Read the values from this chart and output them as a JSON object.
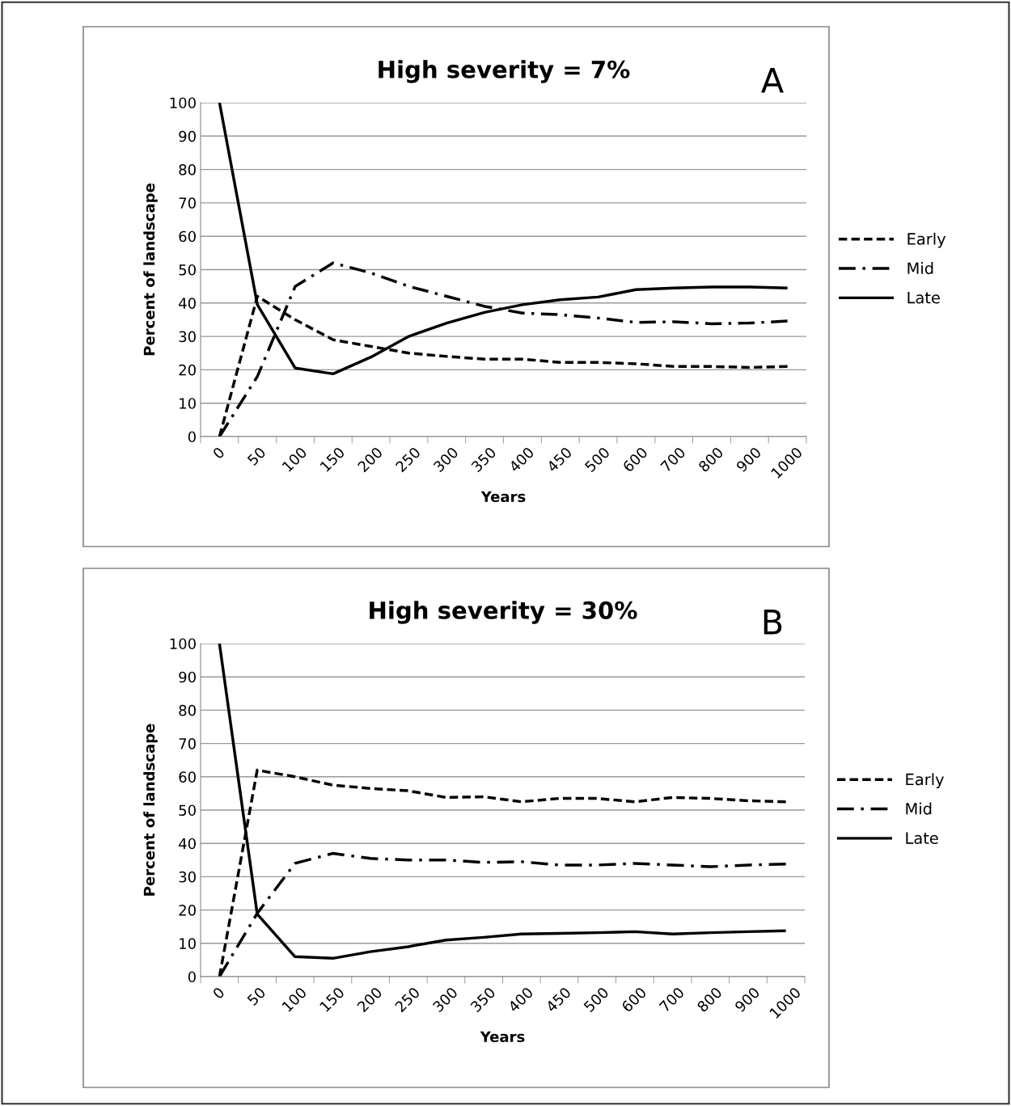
{
  "chart_data": [
    {
      "type": "line",
      "title": "High severity = 7%",
      "annotations": [
        "A"
      ],
      "xlabel": "Years",
      "ylabel": "Percent of landscape",
      "categories": [
        "0",
        "50",
        "100",
        "150",
        "200",
        "250",
        "300",
        "350",
        "400",
        "450",
        "500",
        "600",
        "700",
        "800",
        "900",
        "1000"
      ],
      "ylim": [
        0,
        100
      ],
      "yticks": [
        0,
        10,
        20,
        30,
        40,
        50,
        60,
        70,
        80,
        90,
        100
      ],
      "grid": "y",
      "legend": "right",
      "series": [
        {
          "name": "Early",
          "color": "#000000",
          "line_style": "dashed",
          "values": [
            0,
            42,
            35,
            29,
            27,
            25,
            24,
            23.2,
            23.2,
            22.2,
            22.2,
            21.8,
            21,
            21,
            20.7,
            21
          ]
        },
        {
          "name": "Mid",
          "color": "#000000",
          "line_style": "dashdot",
          "values": [
            0,
            18,
            45,
            52,
            49,
            45,
            42,
            39,
            37,
            36.5,
            35.5,
            34.2,
            34.4,
            33.8,
            34,
            34.6
          ]
        },
        {
          "name": "Late",
          "color": "#000000",
          "line_style": "solid",
          "values": [
            100,
            39.5,
            20.5,
            18.8,
            23.8,
            30,
            34,
            37.2,
            39.5,
            41,
            41.8,
            44,
            44.5,
            44.8,
            44.8,
            44.5
          ]
        }
      ]
    },
    {
      "type": "line",
      "title": "High severity = 30%",
      "annotations": [
        "B"
      ],
      "xlabel": "Years",
      "ylabel": "Percent of landscape",
      "categories": [
        "0",
        "50",
        "100",
        "150",
        "200",
        "250",
        "300",
        "350",
        "400",
        "450",
        "500",
        "600",
        "700",
        "800",
        "900",
        "1000"
      ],
      "ylim": [
        0,
        100
      ],
      "yticks": [
        0,
        10,
        20,
        30,
        40,
        50,
        60,
        70,
        80,
        90,
        100
      ],
      "grid": "y",
      "legend": "right",
      "series": [
        {
          "name": "Early",
          "color": "#000000",
          "line_style": "dashed",
          "values": [
            0,
            62,
            60,
            57.5,
            56.5,
            55.8,
            53.8,
            54,
            52.5,
            53.5,
            53.5,
            52.5,
            53.8,
            53.5,
            52.8,
            52.5
          ]
        },
        {
          "name": "Mid",
          "color": "#000000",
          "line_style": "dashdot",
          "values": [
            0,
            19,
            34,
            37,
            35.5,
            35,
            35,
            34.3,
            34.5,
            33.5,
            33.5,
            34,
            33.5,
            33,
            33.5,
            33.8
          ]
        },
        {
          "name": "Late",
          "color": "#000000",
          "line_style": "solid",
          "values": [
            100,
            18.8,
            6,
            5.5,
            7.5,
            9,
            11,
            11.8,
            12.8,
            13,
            13.2,
            13.5,
            12.8,
            13.2,
            13.5,
            13.8
          ]
        }
      ]
    }
  ]
}
